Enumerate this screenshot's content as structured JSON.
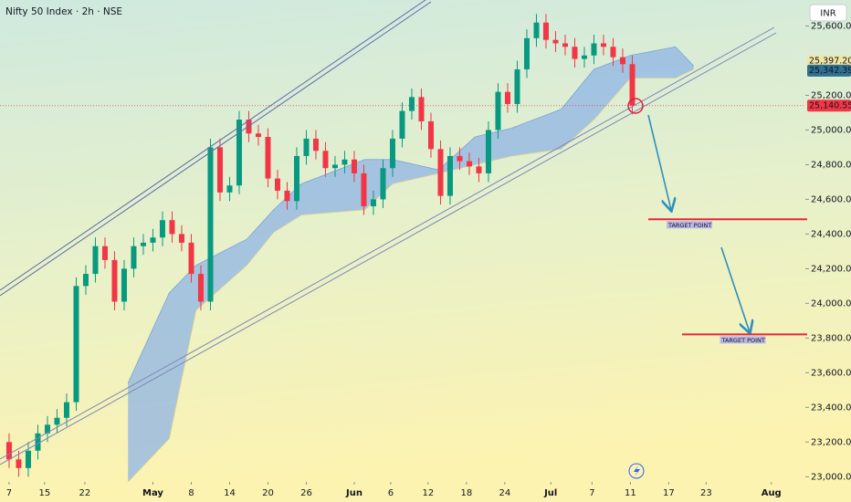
{
  "chart_data": {
    "type": "candlestick",
    "title": "Nifty 50 Index · 2h · NSE",
    "currency": "INR",
    "up_color": "#089981",
    "down_color": "#f23645",
    "x": [
      0,
      1,
      2,
      3,
      4,
      5,
      6,
      7,
      8,
      9,
      10,
      11,
      12,
      13,
      14,
      15,
      16,
      17,
      18,
      19,
      20,
      21,
      22,
      23,
      24,
      25,
      26,
      27,
      28,
      29,
      30,
      31,
      32,
      33,
      34,
      35,
      36,
      37,
      38,
      39,
      40,
      41,
      42,
      43,
      44,
      45,
      46,
      47,
      48,
      49,
      50,
      51,
      52,
      53,
      54,
      55,
      56,
      57,
      58,
      59,
      60,
      61,
      62,
      63,
      64,
      65
    ],
    "open": [
      23200,
      23100,
      23050,
      23150,
      23250,
      23300,
      23340,
      23430,
      24100,
      24170,
      24330,
      24250,
      24010,
      24200,
      24330,
      24350,
      24380,
      24480,
      24400,
      24350,
      24170,
      24010,
      24900,
      24640,
      24680,
      25060,
      24980,
      24960,
      24720,
      24650,
      24590,
      24850,
      24950,
      24880,
      24780,
      24800,
      24830,
      24750,
      24560,
      24600,
      24780,
      24950,
      25110,
      25190,
      25050,
      24890,
      24620,
      24850,
      24820,
      24790,
      24750,
      25000,
      25220,
      25150,
      25350,
      25530,
      25620,
      25520,
      25500,
      25480,
      25410,
      25430,
      25500,
      25480,
      25420,
      25380
    ],
    "high": [
      23250,
      23150,
      23200,
      23300,
      23350,
      23390,
      23480,
      24150,
      24220,
      24380,
      24380,
      24300,
      24250,
      24380,
      24400,
      24430,
      24530,
      24530,
      24450,
      24400,
      24220,
      24950,
      24950,
      24730,
      25110,
      25110,
      25030,
      25010,
      24770,
      24700,
      24900,
      25000,
      25000,
      24930,
      24850,
      24880,
      24880,
      24800,
      24650,
      24830,
      25000,
      25160,
      25240,
      25240,
      25100,
      24940,
      24900,
      24900,
      24870,
      24840,
      25050,
      25270,
      25270,
      25400,
      25580,
      25670,
      25670,
      25570,
      25550,
      25530,
      25480,
      25550,
      25550,
      25530,
      25470,
      25430
    ],
    "low": [
      23050,
      23000,
      23000,
      23100,
      23200,
      23250,
      23290,
      23380,
      24050,
      24120,
      24200,
      23960,
      23960,
      24150,
      24280,
      24300,
      24330,
      24350,
      24300,
      24120,
      23960,
      23960,
      24590,
      24590,
      24630,
      24930,
      24910,
      24670,
      24600,
      24540,
      24540,
      24800,
      24830,
      24730,
      24730,
      24750,
      24700,
      24510,
      24510,
      24550,
      24730,
      24900,
      25060,
      25000,
      24840,
      24570,
      24570,
      24770,
      24740,
      24700,
      24700,
      24950,
      25100,
      25100,
      25300,
      25480,
      25470,
      25450,
      25430,
      25360,
      25360,
      25380,
      25430,
      25370,
      25330,
      25090
    ],
    "close": [
      23100,
      23050,
      23150,
      23250,
      23300,
      23340,
      23430,
      24100,
      24170,
      24330,
      24250,
      24010,
      24200,
      24330,
      24350,
      24380,
      24480,
      24400,
      24350,
      24170,
      24010,
      24900,
      24640,
      24680,
      25060,
      24980,
      24960,
      24720,
      24650,
      24590,
      24850,
      24950,
      24880,
      24780,
      24800,
      24830,
      24750,
      24560,
      24600,
      24780,
      24950,
      25110,
      25190,
      25050,
      24890,
      24620,
      24850,
      24820,
      24790,
      24750,
      25000,
      25220,
      25150,
      25350,
      25530,
      25620,
      25520,
      25500,
      25480,
      25410,
      25430,
      25500,
      25480,
      25420,
      25380,
      25140.55
    ],
    "cloud": {
      "color": "#8fb4e6",
      "x": [
        12.4,
        16.7,
        19.5,
        24.8,
        27.6,
        30.5,
        37.1,
        40,
        44.8,
        48.6,
        52.4,
        57.6,
        61,
        64.8,
        69.5,
        71.4
      ],
      "upper": [
        23540,
        24060,
        24220,
        24370,
        24540,
        24690,
        24830,
        24830,
        24770,
        24960,
        25010,
        25120,
        25350,
        25430,
        25480,
        25370
      ],
      "lower": [
        22970,
        23220,
        23960,
        24220,
        24410,
        24510,
        24540,
        24690,
        24750,
        24800,
        24850,
        24890,
        25060,
        25300,
        25300,
        25350
      ]
    },
    "xlim": [
      -0.95,
      83.05
    ],
    "xticks": [
      {
        "value": 0,
        "label": "7"
      },
      {
        "value": 3.7,
        "label": "15"
      },
      {
        "value": 7.9,
        "label": "22"
      },
      {
        "value": 15,
        "label": "May"
      },
      {
        "value": 19,
        "label": "8"
      },
      {
        "value": 23,
        "label": "14"
      },
      {
        "value": 27,
        "label": "20"
      },
      {
        "value": 31,
        "label": "26"
      },
      {
        "value": 36,
        "label": "Jun"
      },
      {
        "value": 39.8,
        "label": "6"
      },
      {
        "value": 43.7,
        "label": "12"
      },
      {
        "value": 47.7,
        "label": "18"
      },
      {
        "value": 51.7,
        "label": "24"
      },
      {
        "value": 56.5,
        "label": "Jul"
      },
      {
        "value": 60.8,
        "label": "7"
      },
      {
        "value": 64.8,
        "label": "11"
      },
      {
        "value": 68.8,
        "label": "17"
      },
      {
        "value": 72.7,
        "label": "23"
      },
      {
        "value": 79.5,
        "label": "Aug"
      }
    ],
    "ylim": [
      22970,
      25750
    ],
    "yticks": [
      {
        "value": 23000,
        "label": "23,000.00"
      },
      {
        "value": 23200,
        "label": "23,200.00"
      },
      {
        "value": 23400,
        "label": "23,400.00"
      },
      {
        "value": 23600,
        "label": "23,600.00"
      },
      {
        "value": 23800,
        "label": "23,800.00"
      },
      {
        "value": 24000,
        "label": "24,000.00"
      },
      {
        "value": 24200,
        "label": "24,200.00"
      },
      {
        "value": 24400,
        "label": "24,400.00"
      },
      {
        "value": 24600,
        "label": "24,600.00"
      },
      {
        "value": 24800,
        "label": "24,800.00"
      },
      {
        "value": 25000,
        "label": "25,000.00"
      },
      {
        "value": 25200,
        "label": "25,200.00"
      },
      {
        "value": 25600,
        "label": "25,600.00"
      }
    ],
    "badges": [
      {
        "value": 25397.2,
        "label": "25,397.20",
        "bg": "#efe6a6",
        "fg": "#131722"
      },
      {
        "value": 25342.39,
        "label": "25,342.39",
        "bg": "#2f6f8f",
        "fg": "#ffffff"
      },
      {
        "value": 25140.55,
        "label": "25,140.55",
        "bg": "#f23645",
        "fg": "#ffffff"
      }
    ],
    "targets": [
      {
        "value": 24485,
        "label": "TARGET POINT"
      },
      {
        "value": 23821,
        "label": "TARGET POINT"
      }
    ]
  }
}
